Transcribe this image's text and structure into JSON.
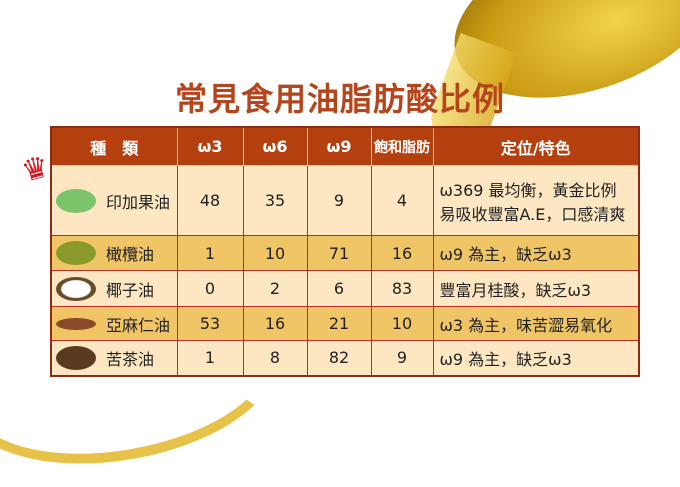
{
  "title": "常見食用油脂肪酸比例",
  "headers": [
    "種　類",
    "ω3",
    "ω6",
    "ω9",
    "飽和脂肪",
    "定位/特色"
  ],
  "rows": [
    {
      "name": "印加果油",
      "w3": "48",
      "w6": "35",
      "w9": "9",
      "sat": "4",
      "feature": [
        "ω369 最均衡，黃金比例",
        "易吸收豐富A.E，口感清爽"
      ]
    },
    {
      "name": "橄欖油",
      "w3": "1",
      "w6": "10",
      "w9": "71",
      "sat": "16",
      "feature": [
        "ω9 為主，缺乏ω3"
      ]
    },
    {
      "name": "椰子油",
      "w3": "0",
      "w6": "2",
      "w9": "6",
      "sat": "83",
      "feature": [
        "豐富月桂酸，缺乏ω3"
      ]
    },
    {
      "name": "亞麻仁油",
      "w3": "53",
      "w6": "16",
      "w9": "21",
      "sat": "10",
      "feature": [
        "ω3 為主，味苦澀易氧化"
      ]
    },
    {
      "name": "苦茶油",
      "w3": "1",
      "w6": "8",
      "w9": "82",
      "sat": "9",
      "feature": [
        "ω9 為主，缺乏ω3"
      ]
    }
  ]
}
